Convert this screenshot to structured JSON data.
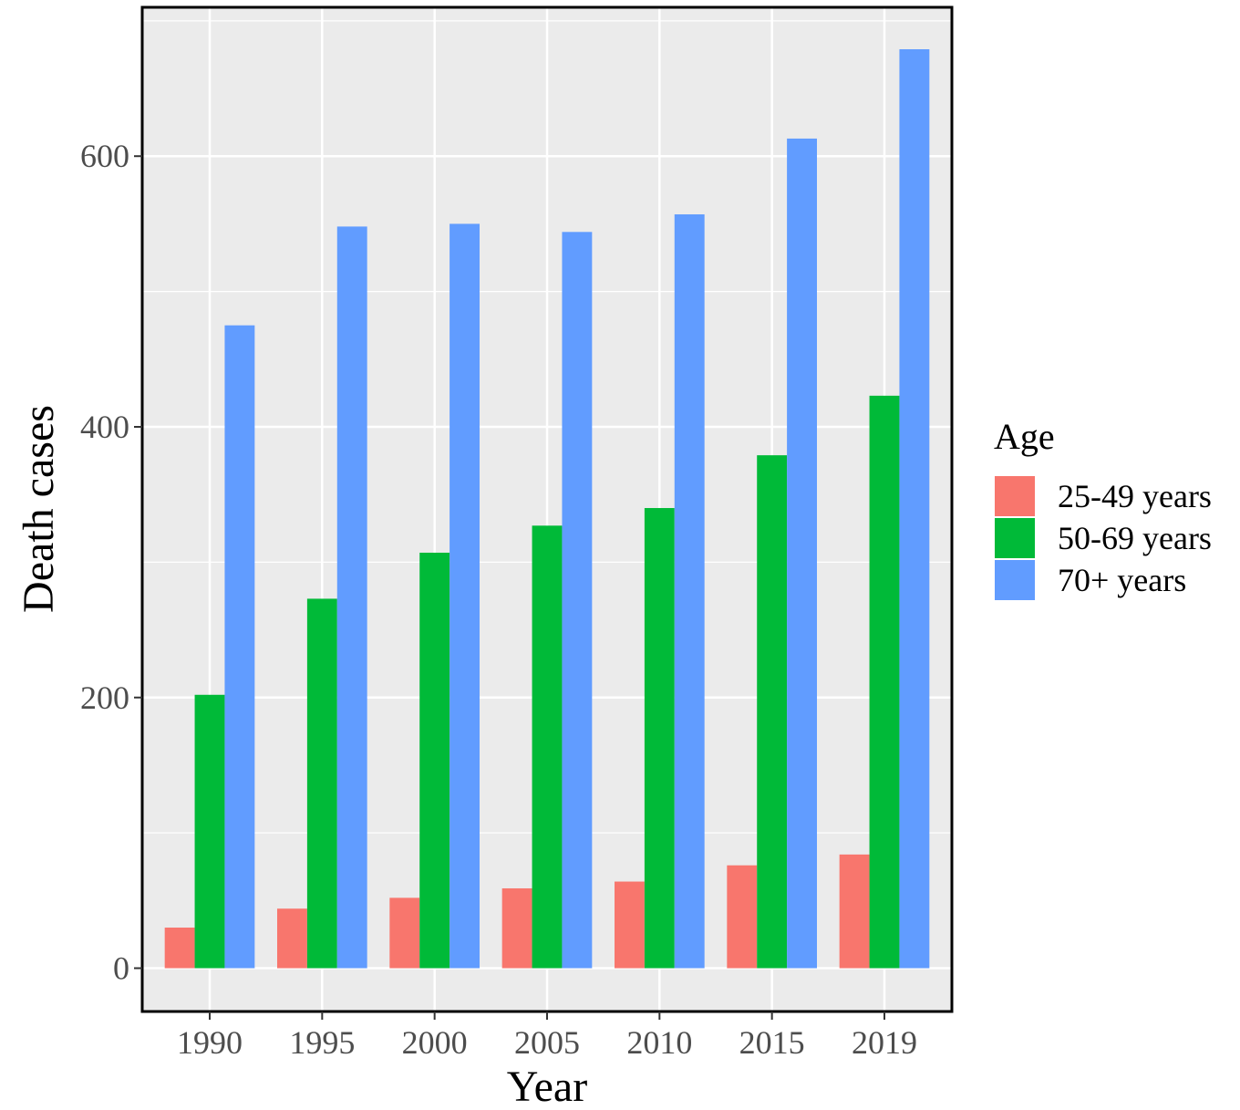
{
  "chart_data": {
    "type": "bar",
    "title": "",
    "xlabel": "Year",
    "ylabel": "Death cases",
    "categories": [
      "1990",
      "1995",
      "2000",
      "2005",
      "2010",
      "2015",
      "2019"
    ],
    "series": [
      {
        "name": "25-49 years",
        "color": "#F8766D",
        "values": [
          30,
          44,
          52,
          59,
          64,
          76,
          84
        ]
      },
      {
        "name": "50-69 years",
        "color": "#00BA38",
        "values": [
          202,
          273,
          307,
          327,
          340,
          379,
          423
        ]
      },
      {
        "name": "70+ years",
        "color": "#619CFF",
        "values": [
          475,
          548,
          550,
          544,
          557,
          613,
          679
        ]
      }
    ],
    "ylim": [
      -32,
      710
    ],
    "yticks": [
      0,
      200,
      400,
      600
    ],
    "grid": true,
    "legend": {
      "title": "Age",
      "position": "right"
    }
  }
}
